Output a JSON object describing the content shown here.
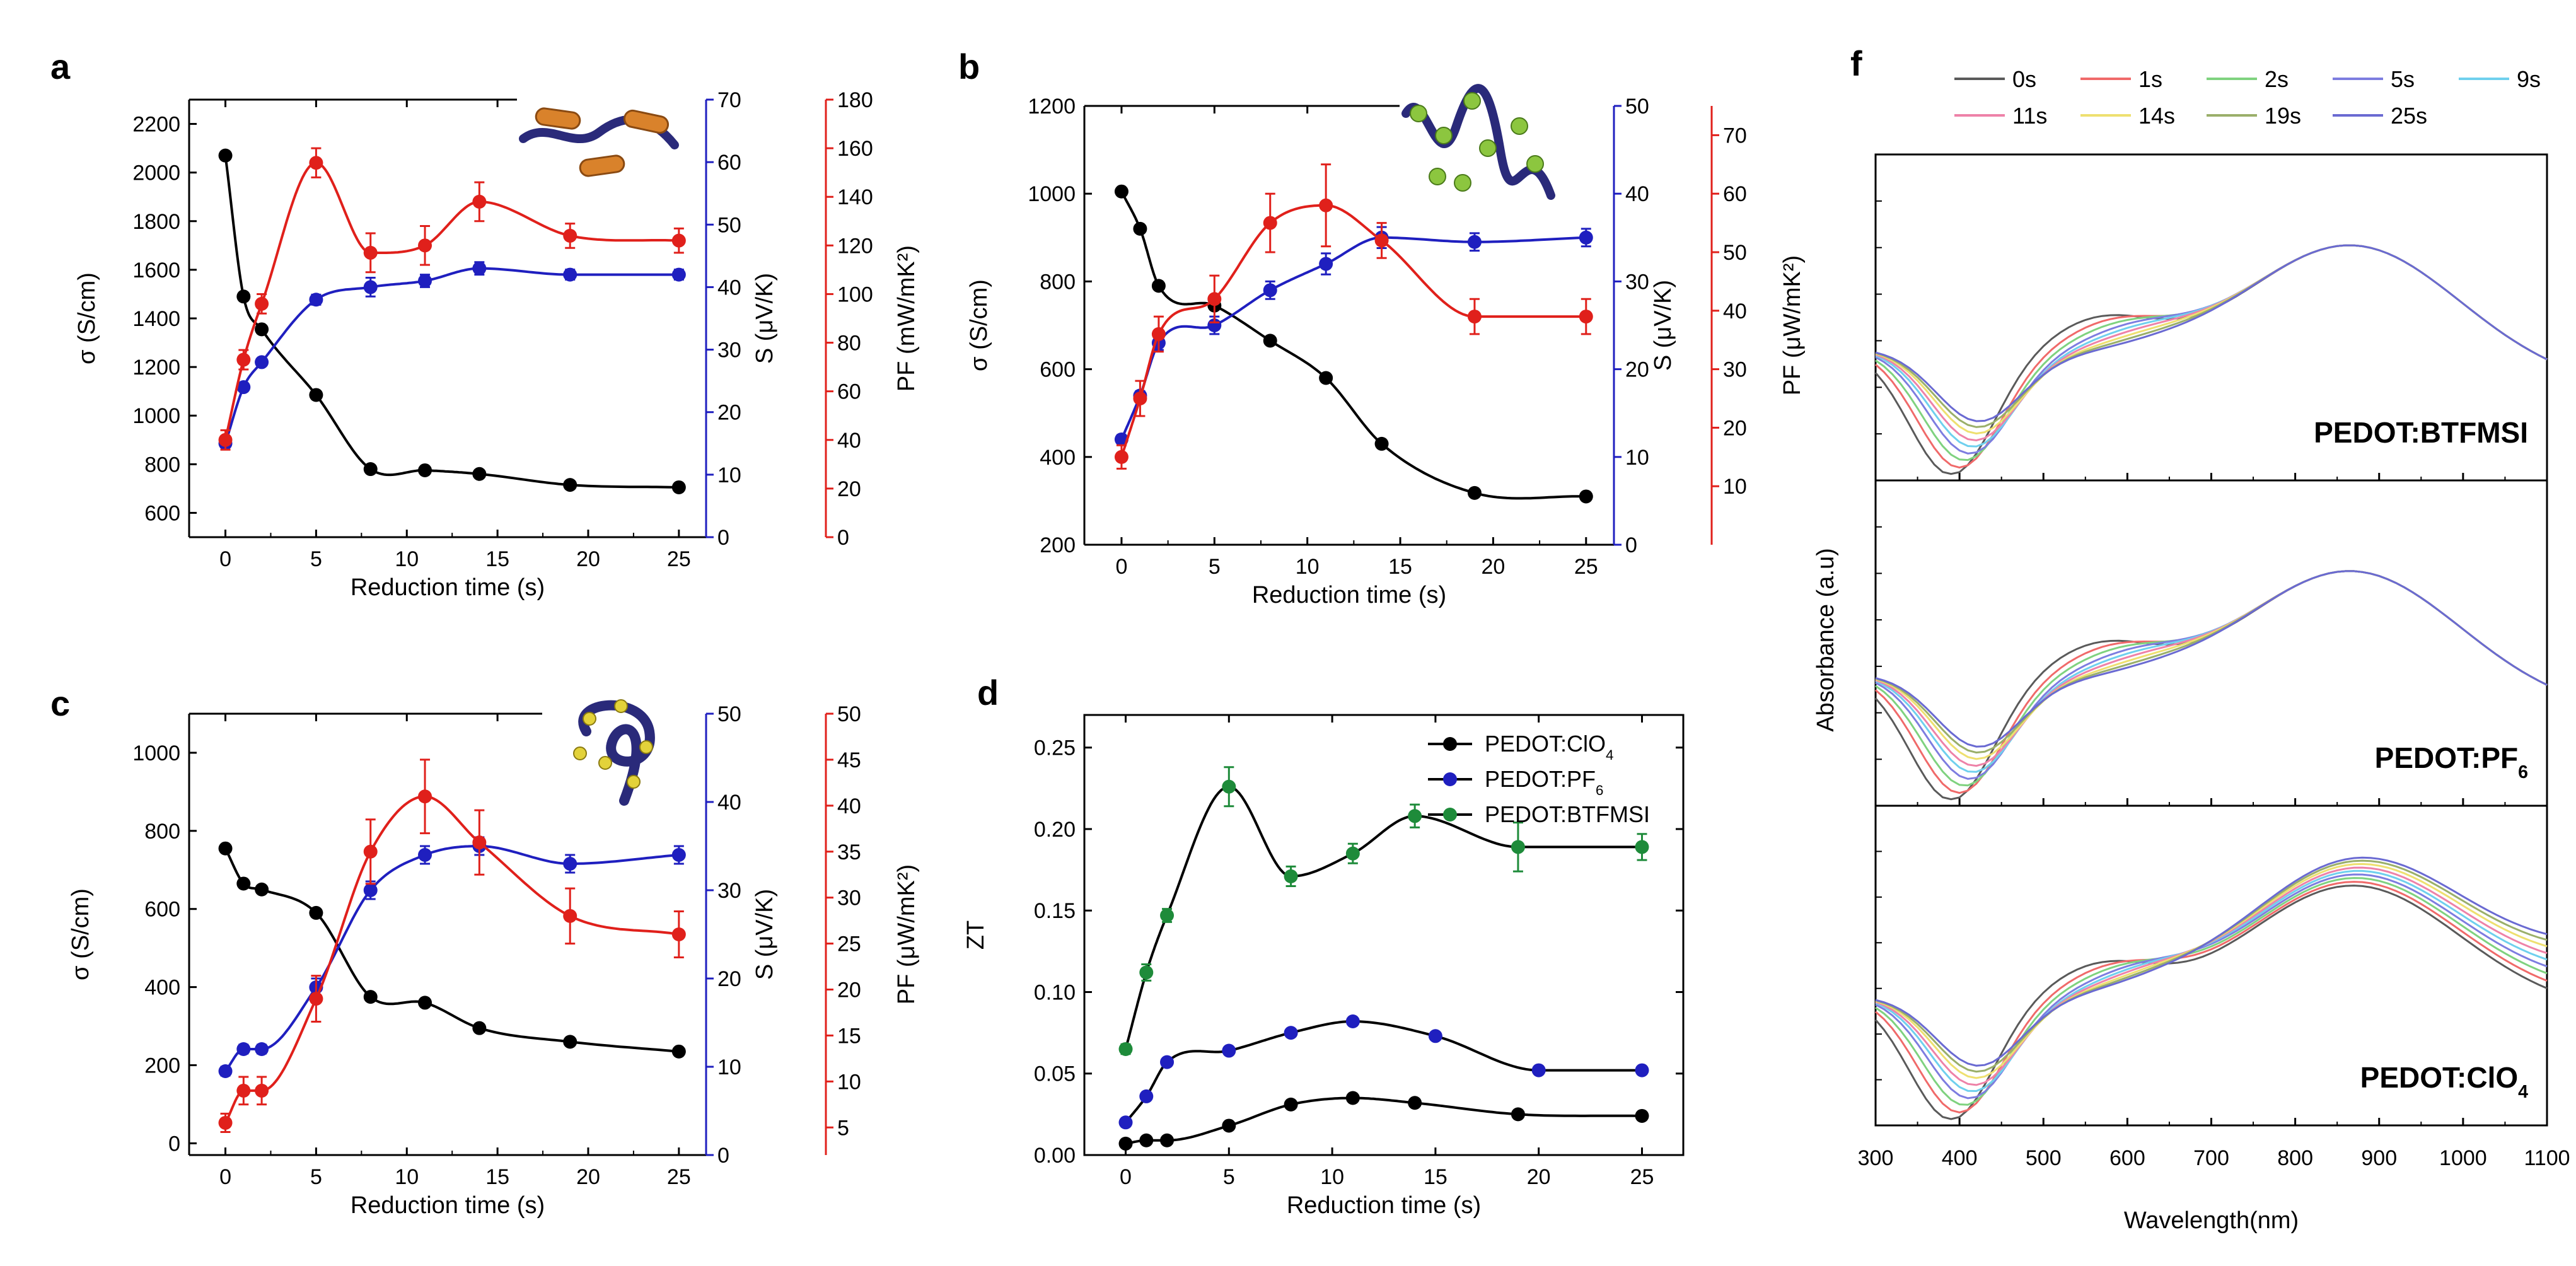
{
  "chart_data": [
    {
      "panel": "a",
      "type": "line",
      "xlabel": "Reduction time (s)",
      "xlim": [
        -2,
        26.5
      ],
      "xticks": [
        0,
        5,
        10,
        15,
        20,
        25
      ],
      "axes": {
        "left": {
          "label": "σ (S/cm)",
          "range": [
            500,
            2300
          ],
          "ticks": [
            600,
            800,
            1000,
            1200,
            1400,
            1600,
            1800,
            2000,
            2200
          ],
          "color": "#000000"
        },
        "mid": {
          "label": "S (μV/K)",
          "range": [
            0,
            70
          ],
          "ticks": [
            0,
            10,
            20,
            30,
            40,
            50,
            60,
            70
          ],
          "color": "#1f1fbf"
        },
        "right": {
          "label": "PF (mW/mK²)",
          "range": [
            0,
            180
          ],
          "ticks": [
            0,
            20,
            40,
            60,
            80,
            100,
            120,
            140,
            160,
            180
          ],
          "color": "#e0201b"
        }
      },
      "series": [
        {
          "name": "σ",
          "axis": "left",
          "color": "#000000",
          "x": [
            0,
            1,
            2,
            5,
            8,
            11,
            14,
            19,
            25
          ],
          "y": [
            2070,
            1490,
            1355,
            1085,
            780,
            775,
            760,
            715,
            705
          ],
          "err": []
        },
        {
          "name": "S",
          "axis": "mid",
          "color": "#1f1fbf",
          "x": [
            0,
            1,
            2,
            5,
            8,
            11,
            14,
            19,
            25
          ],
          "y": [
            15,
            24,
            28,
            38,
            40,
            41,
            43,
            42,
            42
          ],
          "err": [
            0.5,
            0.5,
            0.5,
            0.8,
            1.5,
            1,
            1,
            0.8,
            0.8
          ]
        },
        {
          "name": "PF",
          "axis": "right",
          "color": "#e0201b",
          "x": [
            0,
            1,
            2,
            5,
            8,
            11,
            14,
            19,
            25
          ],
          "y": [
            40,
            73,
            96,
            154,
            117,
            120,
            138,
            124,
            122
          ],
          "err": [
            4,
            4,
            4,
            6,
            8,
            8,
            8,
            5,
            5
          ]
        }
      ]
    },
    {
      "panel": "b",
      "type": "line",
      "xlabel": "Reduction time (s)",
      "xlim": [
        -2,
        26.5
      ],
      "xticks": [
        0,
        5,
        10,
        15,
        20,
        25
      ],
      "axes": {
        "left": {
          "label": "σ (S/cm)",
          "range": [
            200,
            1200
          ],
          "ticks": [
            200,
            400,
            600,
            800,
            1000,
            1200
          ],
          "color": "#000000"
        },
        "mid": {
          "label": "S (μV/K)",
          "range": [
            0,
            50
          ],
          "ticks": [
            0,
            10,
            20,
            30,
            40,
            50
          ],
          "color": "#1f1fbf"
        },
        "right": {
          "label": "PF (μW/mK²)",
          "range": [
            0,
            75
          ],
          "ticks": [
            10,
            20,
            30,
            40,
            50,
            60,
            70
          ],
          "color": "#e0201b"
        }
      },
      "series": [
        {
          "name": "σ",
          "axis": "left",
          "color": "#000000",
          "x": [
            0,
            1,
            2,
            5,
            8,
            11,
            14,
            19,
            25
          ],
          "y": [
            1005,
            920,
            790,
            745,
            665,
            580,
            430,
            318,
            310
          ],
          "err": []
        },
        {
          "name": "S",
          "axis": "mid",
          "color": "#1f1fbf",
          "x": [
            0,
            1,
            2,
            5,
            8,
            11,
            14,
            19,
            25
          ],
          "y": [
            12,
            17,
            23,
            25,
            29,
            32,
            35,
            34.5,
            35
          ],
          "err": [
            0.5,
            0.5,
            0.8,
            1,
            1,
            1.2,
            1.2,
            1,
            1
          ]
        },
        {
          "name": "PF",
          "axis": "right",
          "color": "#e0201b",
          "x": [
            0,
            1,
            2,
            5,
            8,
            11,
            14,
            19,
            25
          ],
          "y": [
            15,
            25,
            36,
            42,
            55,
            58,
            52,
            39,
            39
          ],
          "err": [
            2,
            3,
            3,
            4,
            5,
            7,
            3,
            3,
            3
          ]
        }
      ]
    },
    {
      "panel": "c",
      "type": "line",
      "xlabel": "Reduction time (s)",
      "xlim": [
        -2,
        26.5
      ],
      "xticks": [
        0,
        5,
        10,
        15,
        20,
        25
      ],
      "axes": {
        "left": {
          "label": "σ (S/cm)",
          "range": [
            -30,
            1100
          ],
          "ticks": [
            0,
            200,
            400,
            600,
            800,
            1000
          ],
          "color": "#000000"
        },
        "mid": {
          "label": "S (μV/K)",
          "range": [
            0,
            50
          ],
          "ticks": [
            0,
            10,
            20,
            30,
            40,
            50
          ],
          "color": "#1f1fbf"
        },
        "right": {
          "label": "PF (μW/mK²)",
          "range": [
            2,
            50
          ],
          "ticks": [
            5,
            10,
            15,
            20,
            25,
            30,
            35,
            40,
            45,
            50
          ],
          "color": "#e0201b"
        }
      },
      "series": [
        {
          "name": "σ",
          "axis": "left",
          "color": "#000000",
          "x": [
            0,
            1,
            2,
            5,
            8,
            11,
            14,
            19,
            25
          ],
          "y": [
            755,
            665,
            650,
            590,
            375,
            360,
            295,
            260,
            235
          ],
          "err": []
        },
        {
          "name": "S",
          "axis": "mid",
          "color": "#1f1fbf",
          "x": [
            0,
            1,
            2,
            5,
            8,
            11,
            14,
            19,
            25
          ],
          "y": [
            9.5,
            12,
            12,
            19,
            30,
            34,
            35,
            33,
            34
          ],
          "err": [
            0.5,
            0.5,
            0.5,
            1,
            1,
            1,
            1,
            1,
            1
          ]
        },
        {
          "name": "PF",
          "axis": "right",
          "color": "#e0201b",
          "x": [
            0,
            1,
            2,
            5,
            8,
            11,
            14,
            19,
            25
          ],
          "y": [
            5.5,
            9,
            9,
            19,
            35,
            41,
            36,
            28,
            26
          ],
          "err": [
            1,
            1.5,
            1.5,
            2.5,
            3.5,
            4,
            3.5,
            3,
            2.5
          ]
        }
      ]
    },
    {
      "panel": "d",
      "type": "line",
      "xlabel": "Reduction time (s)",
      "ylabel": "ZT",
      "xlim": [
        -2,
        27
      ],
      "ylim": [
        0,
        0.27
      ],
      "xticks": [
        0,
        5,
        10,
        15,
        20,
        25
      ],
      "yticks": [
        "0.00",
        "0.05",
        "0.10",
        "0.15",
        "0.20",
        "0.25"
      ],
      "legend_position": "top-right",
      "series": [
        {
          "name": "PEDOT:ClO4",
          "label_main": "PEDOT:ClO",
          "label_sub": "4",
          "color": "#000000",
          "x": [
            0,
            1,
            2,
            5,
            8,
            11,
            14,
            19,
            25
          ],
          "y": [
            0.007,
            0.009,
            0.009,
            0.018,
            0.031,
            0.035,
            0.032,
            0.025,
            0.024
          ]
        },
        {
          "name": "PEDOT:PF6",
          "label_main": "PEDOT:PF",
          "label_sub": "6",
          "color": "#1f1fbf",
          "x": [
            0,
            1,
            2,
            5,
            8,
            11,
            15,
            20,
            25
          ],
          "y": [
            0.02,
            0.036,
            0.057,
            0.064,
            0.075,
            0.082,
            0.073,
            0.052,
            0.052
          ]
        },
        {
          "name": "PEDOT:BTFMSI",
          "label_main": "PEDOT:BTFMSI",
          "label_sub": "",
          "color": "#1e8b3a",
          "x": [
            0,
            1,
            2,
            5,
            8,
            11,
            14,
            19,
            25
          ],
          "y": [
            0.065,
            0.112,
            0.147,
            0.226,
            0.171,
            0.185,
            0.208,
            0.189,
            0.189
          ],
          "err": [
            0.003,
            0.005,
            0.004,
            0.012,
            0.006,
            0.006,
            0.007,
            0.015,
            0.008
          ]
        }
      ]
    },
    {
      "panel": "f",
      "type": "line",
      "xlabel": "Wavelength(nm)",
      "ylabel": "Absorbance (a.u)",
      "xlim": [
        300,
        1100
      ],
      "xticks": [
        300,
        400,
        500,
        600,
        700,
        800,
        900,
        1000,
        1100
      ],
      "legend": [
        {
          "name": "0s",
          "color": "#5a5a5a"
        },
        {
          "name": "1s",
          "color": "#f06a6a"
        },
        {
          "name": "2s",
          "color": "#7fd27f"
        },
        {
          "name": "5s",
          "color": "#7d7de0"
        },
        {
          "name": "9s",
          "color": "#6fd0ee"
        },
        {
          "name": "11s",
          "color": "#ee82a8"
        },
        {
          "name": "14s",
          "color": "#eee070"
        },
        {
          "name": "19s",
          "color": "#9aaf6a"
        },
        {
          "name": "25s",
          "color": "#6a6ad2"
        }
      ],
      "subpanels": [
        {
          "label": "PEDOT:BTFMSI",
          "label_main": "PEDOT:BTFMSI",
          "label_sub": ""
        },
        {
          "label": "PEDOT:PF6",
          "label_main": "PEDOT:PF",
          "label_sub": "6"
        },
        {
          "label": "PEDOT:ClO4",
          "label_main": "PEDOT:ClO",
          "label_sub": "4"
        }
      ]
    }
  ],
  "panel_labels": [
    "a",
    "b",
    "c",
    "d",
    "f"
  ]
}
